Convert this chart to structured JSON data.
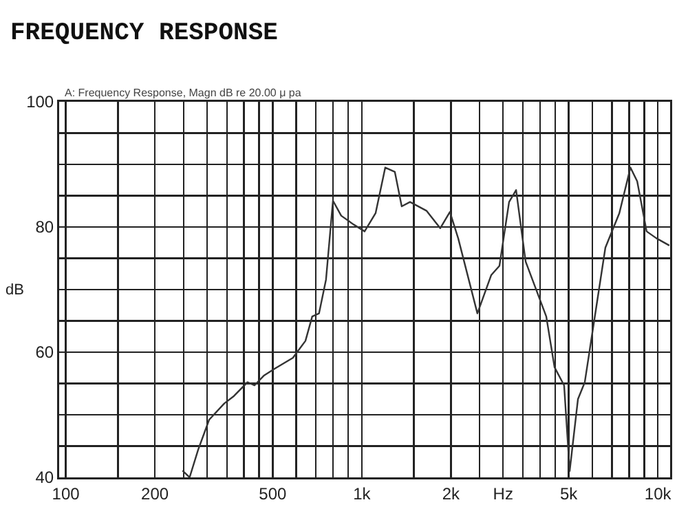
{
  "chart_data": {
    "type": "line",
    "title": "FREQUENCY RESPONSE",
    "subtitle": "A: Frequency Response, Magn dB re 20.00 μ pa",
    "ylabel": "dB",
    "log": "x",
    "grid": true,
    "marker": "none",
    "line_style": "solid",
    "xlim": [
      95,
      11000
    ],
    "ylim": [
      40,
      100
    ],
    "xticks": [
      100,
      {
        "value": 150,
        "label": null
      },
      200,
      {
        "value": 250,
        "label": null
      },
      {
        "value": 300,
        "label": null
      },
      {
        "value": 350,
        "label": null
      },
      {
        "value": 400,
        "label": null
      },
      {
        "value": 450,
        "label": null
      },
      500,
      {
        "value": 600,
        "label": null
      },
      {
        "value": 700,
        "label": null
      },
      {
        "value": 800,
        "label": null
      },
      {
        "value": 900,
        "label": null
      },
      {
        "value": 1000,
        "label": "1k"
      },
      {
        "value": 1500,
        "label": null
      },
      {
        "value": 2000,
        "label": "2k"
      },
      {
        "value": 2500,
        "label": null
      },
      {
        "value": 3000,
        "label": "Hz"
      },
      {
        "value": 3500,
        "label": null
      },
      {
        "value": 4000,
        "label": null
      },
      {
        "value": 4500,
        "label": null
      },
      {
        "value": 5000,
        "label": "5k"
      },
      {
        "value": 6000,
        "label": null
      },
      {
        "value": 7000,
        "label": null
      },
      {
        "value": 8000,
        "label": null
      },
      {
        "value": 9000,
        "label": null
      },
      {
        "value": 10000,
        "label": "10k"
      }
    ],
    "yticks": [
      40,
      {
        "value": 45,
        "label": null
      },
      {
        "value": 50,
        "label": null
      },
      {
        "value": 55,
        "label": null
      },
      60,
      {
        "value": 65,
        "label": null
      },
      {
        "value": 70,
        "label": null
      },
      {
        "value": 75,
        "label": null
      },
      80,
      {
        "value": 85,
        "label": null
      },
      {
        "value": 90,
        "label": null
      },
      {
        "value": 95,
        "label": null
      },
      100
    ],
    "x": [
      249,
      262,
      280,
      305,
      343,
      370,
      411,
      434,
      468,
      509,
      585,
      645,
      680,
      717,
      757,
      799,
      852,
      938,
      1022,
      1113,
      1200,
      1293,
      1364,
      1455,
      1653,
      1840,
      1984,
      2116,
      2457,
      2735,
      2917,
      3144,
      3320,
      3575,
      4198,
      4477,
      4823,
      5036,
      5372,
      5664,
      6649,
      7410,
      8080,
      8515,
      9163,
      9887,
      10880
    ],
    "series": [
      {
        "color": "#333333",
        "values": [
          41,
          40,
          44.4,
          49.2,
          51.8,
          53,
          55.2,
          54.7,
          56.3,
          57.4,
          59.1,
          61.8,
          65.7,
          66.2,
          71.6,
          84.2,
          81.8,
          80.4,
          79.3,
          82.2,
          89.5,
          88.8,
          83.3,
          84,
          82.6,
          79.8,
          82.4,
          78.2,
          66.2,
          72.3,
          73.8,
          84,
          85.9,
          74.5,
          65.7,
          57.6,
          54.7,
          41,
          52.5,
          55.2,
          76.7,
          82.2,
          89.5,
          87.3,
          79.3,
          78.2,
          77.1
        ]
      }
    ]
  }
}
